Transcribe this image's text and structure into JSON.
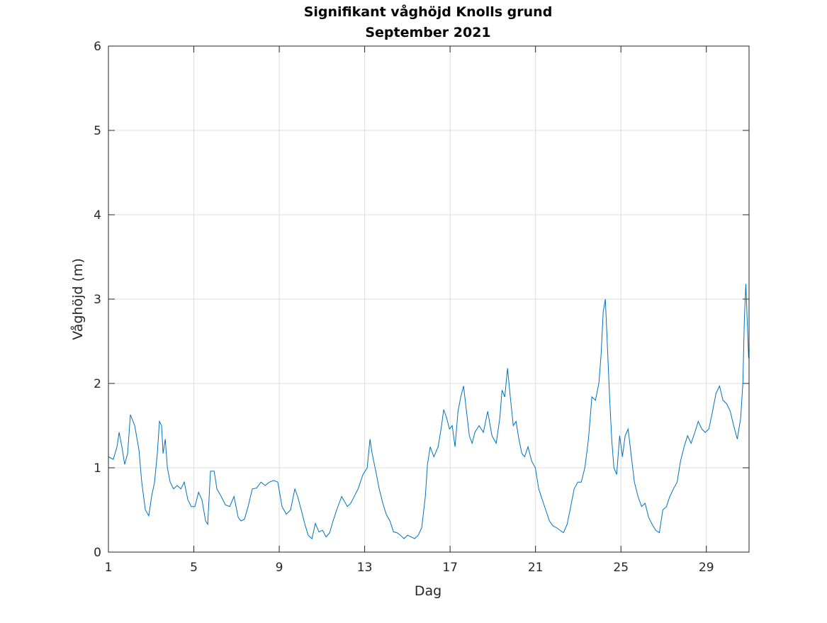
{
  "chart_data": {
    "type": "line",
    "title": "Signifikant våghöjd Knolls grund",
    "subtitle": "September 2021",
    "xlabel": "Dag",
    "ylabel": "Våghöjd (m)",
    "xlim": [
      1,
      31
    ],
    "ylim": [
      0,
      6
    ],
    "xticks": [
      1,
      5,
      9,
      13,
      17,
      21,
      25,
      29
    ],
    "yticks": [
      0,
      1,
      2,
      3,
      4,
      5,
      6
    ],
    "grid": true,
    "line_color": "#0072BD",
    "series": [
      {
        "x": [
          1.0,
          1.23,
          1.4,
          1.5,
          1.63,
          1.76,
          1.9,
          2.03,
          2.23,
          2.43,
          2.56,
          2.73,
          2.89,
          3.02,
          3.16,
          3.29,
          3.39,
          3.49,
          3.56,
          3.66,
          3.76,
          3.89,
          4.05,
          4.22,
          4.39,
          4.55,
          4.72,
          4.88,
          5.05,
          5.22,
          5.38,
          5.55,
          5.65,
          5.78,
          5.95,
          6.08,
          6.28,
          6.48,
          6.68,
          6.88,
          7.08,
          7.21,
          7.37,
          7.54,
          7.74,
          7.94,
          8.14,
          8.34,
          8.54,
          8.74,
          8.93,
          9.13,
          9.33,
          9.53,
          9.73,
          9.86,
          10.03,
          10.2,
          10.36,
          10.53,
          10.69,
          10.86,
          11.03,
          11.19,
          11.36,
          11.52,
          11.69,
          11.92,
          12.19,
          12.35,
          12.69,
          12.92,
          13.12,
          13.25,
          13.35,
          13.52,
          13.68,
          13.85,
          14.01,
          14.18,
          14.35,
          14.51,
          14.68,
          14.84,
          15.01,
          15.18,
          15.34,
          15.51,
          15.67,
          15.84,
          15.94,
          16.07,
          16.24,
          16.44,
          16.6,
          16.7,
          16.84,
          16.97,
          17.1,
          17.23,
          17.37,
          17.5,
          17.63,
          17.77,
          17.9,
          18.03,
          18.16,
          18.36,
          18.56,
          18.76,
          18.96,
          19.16,
          19.33,
          19.43,
          19.56,
          19.69,
          19.82,
          19.96,
          20.09,
          20.22,
          20.36,
          20.49,
          20.65,
          20.82,
          20.99,
          21.15,
          21.32,
          21.48,
          21.65,
          21.82,
          21.98,
          22.15,
          22.31,
          22.48,
          22.65,
          22.81,
          22.98,
          23.14,
          23.31,
          23.48,
          23.64,
          23.81,
          23.97,
          24.07,
          24.17,
          24.27,
          24.37,
          24.47,
          24.57,
          24.67,
          24.8,
          24.94,
          25.07,
          25.2,
          25.34,
          25.47,
          25.63,
          25.8,
          25.97,
          26.13,
          26.3,
          26.46,
          26.63,
          26.8,
          26.96,
          27.13,
          27.29,
          27.46,
          27.63,
          27.79,
          27.96,
          28.12,
          28.29,
          28.46,
          28.62,
          28.79,
          28.95,
          29.12,
          29.29,
          29.45,
          29.62,
          29.78,
          29.95,
          30.12,
          30.28,
          30.45,
          30.61,
          30.71,
          30.78,
          30.85,
          30.98
        ],
        "y": [
          1.13,
          1.1,
          1.25,
          1.42,
          1.25,
          1.04,
          1.17,
          1.63,
          1.5,
          1.21,
          0.83,
          0.5,
          0.43,
          0.66,
          0.83,
          1.17,
          1.55,
          1.5,
          1.17,
          1.34,
          1.0,
          0.83,
          0.75,
          0.79,
          0.75,
          0.83,
          0.62,
          0.54,
          0.54,
          0.71,
          0.62,
          0.37,
          0.33,
          0.96,
          0.96,
          0.75,
          0.66,
          0.56,
          0.54,
          0.66,
          0.41,
          0.37,
          0.39,
          0.54,
          0.75,
          0.76,
          0.83,
          0.79,
          0.83,
          0.85,
          0.83,
          0.54,
          0.45,
          0.5,
          0.75,
          0.66,
          0.5,
          0.33,
          0.2,
          0.16,
          0.34,
          0.24,
          0.26,
          0.18,
          0.23,
          0.37,
          0.5,
          0.66,
          0.54,
          0.58,
          0.75,
          0.92,
          1.0,
          1.34,
          1.17,
          0.96,
          0.75,
          0.58,
          0.45,
          0.37,
          0.24,
          0.23,
          0.2,
          0.16,
          0.2,
          0.18,
          0.16,
          0.2,
          0.29,
          0.66,
          1.04,
          1.25,
          1.13,
          1.25,
          1.5,
          1.69,
          1.59,
          1.46,
          1.5,
          1.25,
          1.67,
          1.84,
          1.97,
          1.67,
          1.38,
          1.29,
          1.42,
          1.5,
          1.42,
          1.67,
          1.38,
          1.29,
          1.59,
          1.92,
          1.84,
          2.18,
          1.84,
          1.5,
          1.55,
          1.34,
          1.17,
          1.13,
          1.25,
          1.08,
          1.0,
          0.75,
          0.62,
          0.5,
          0.37,
          0.31,
          0.29,
          0.26,
          0.23,
          0.33,
          0.54,
          0.75,
          0.83,
          0.83,
          1.0,
          1.34,
          1.84,
          1.8,
          2.01,
          2.34,
          2.85,
          3.0,
          2.43,
          1.84,
          1.34,
          1.0,
          0.92,
          1.38,
          1.13,
          1.38,
          1.46,
          1.17,
          0.83,
          0.66,
          0.54,
          0.58,
          0.41,
          0.33,
          0.26,
          0.23,
          0.5,
          0.54,
          0.66,
          0.75,
          0.83,
          1.08,
          1.25,
          1.38,
          1.29,
          1.42,
          1.55,
          1.46,
          1.42,
          1.46,
          1.67,
          1.88,
          1.97,
          1.8,
          1.76,
          1.67,
          1.5,
          1.34,
          1.59,
          2.01,
          2.77,
          3.18,
          2.3
        ]
      }
    ]
  }
}
